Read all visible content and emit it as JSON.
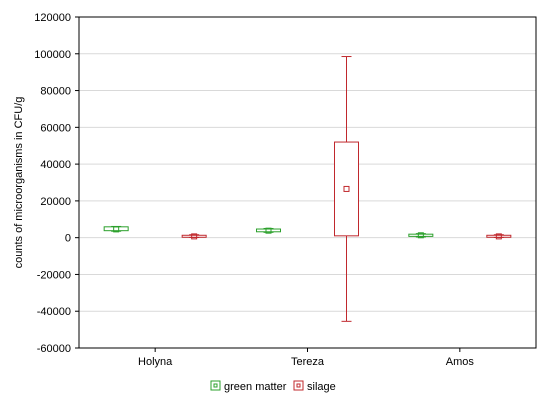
{
  "chart_data": {
    "type": "box",
    "ylabel": "counts of microorganisms in CFU/g",
    "ylim": [
      -60000,
      120000
    ],
    "yticks": [
      -60000,
      -40000,
      -20000,
      0,
      20000,
      40000,
      60000,
      80000,
      100000,
      120000
    ],
    "ytick_labels": [
      "-60000",
      "-40000",
      "-20000",
      "0",
      "20000",
      "40000",
      "60000",
      "80000",
      "100000",
      "120000"
    ],
    "grid": true,
    "legend_position": "bottom",
    "categories": [
      "Holyna",
      "Tereza",
      "Amos"
    ],
    "series": [
      {
        "name": "green matter",
        "color": "#2ca02c",
        "boxes": [
          {
            "category": "Holyna",
            "whisker_low": 3500,
            "q1": 3800,
            "median": 4500,
            "q3": 5900,
            "whisker_high": 6100
          },
          {
            "category": "Tereza",
            "whisker_low": 2900,
            "q1": 3200,
            "median": 3800,
            "q3": 4700,
            "whisker_high": 5000
          },
          {
            "category": "Amos",
            "whisker_low": 400,
            "q1": 700,
            "median": 1300,
            "q3": 1900,
            "whisker_high": 2200
          }
        ]
      },
      {
        "name": "silage",
        "color": "#c0282d",
        "boxes": [
          {
            "category": "Holyna",
            "whisker_low": 100,
            "q1": 300,
            "median": 700,
            "q3": 1300,
            "whisker_high": 1600
          },
          {
            "category": "Tereza",
            "whisker_low": -45500,
            "q1": 1000,
            "median": 26500,
            "q3": 52000,
            "whisker_high": 98500
          },
          {
            "category": "Amos",
            "whisker_low": 100,
            "q1": 300,
            "median": 700,
            "q3": 1300,
            "whisker_high": 1600
          }
        ]
      }
    ]
  }
}
